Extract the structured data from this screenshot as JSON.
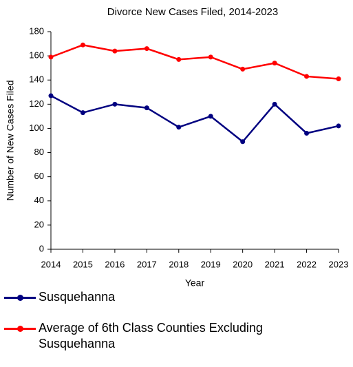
{
  "chart_data": {
    "type": "line",
    "title": "Divorce New Cases Filed, 2014-2023",
    "x_label": "Year",
    "y_label": "Number of New Cases Filed",
    "x": [
      2014,
      2015,
      2016,
      2017,
      2018,
      2019,
      2020,
      2021,
      2022,
      2023
    ],
    "xlim": [
      2014,
      2023
    ],
    "xticks": [
      2014,
      2015,
      2016,
      2017,
      2018,
      2019,
      2020,
      2021,
      2022,
      2023
    ],
    "ylim": [
      0,
      180
    ],
    "yticks": [
      0,
      20,
      40,
      60,
      80,
      100,
      120,
      140,
      160,
      180
    ],
    "grid": false,
    "series": [
      {
        "name": "Susquehanna",
        "color": "#000080",
        "values": [
          127,
          113,
          120,
          117,
          101,
          110,
          89,
          120,
          96,
          102
        ]
      },
      {
        "name": "Average of 6th Class Counties Excluding Susquehanna",
        "color": "#ff0000",
        "values": [
          159,
          169,
          164,
          166,
          157,
          159,
          149,
          154,
          143,
          141
        ]
      }
    ]
  }
}
